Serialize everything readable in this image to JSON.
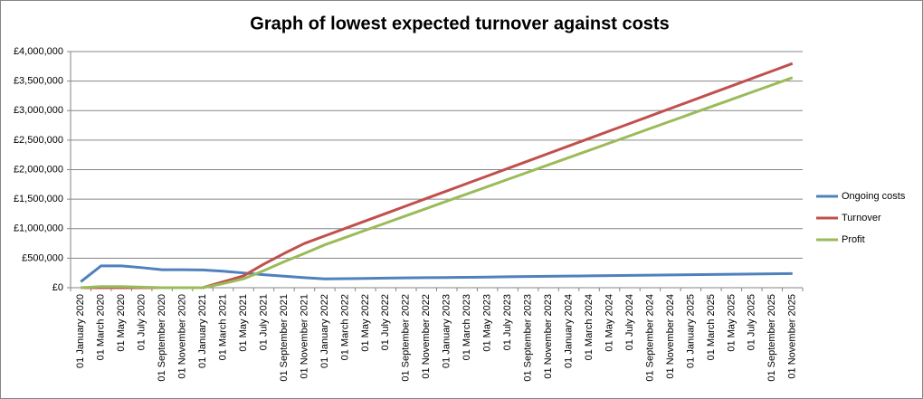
{
  "chart_data": {
    "type": "line",
    "title": "Graph of lowest expected turnover against costs",
    "categories": [
      "01 January 2020",
      "01 March 2020",
      "01 May 2020",
      "01 July 2020",
      "01 September 2020",
      "01 November 2020",
      "01 January 2021",
      "01 March 2021",
      "01 May 2021",
      "01 July 2021",
      "01 September 2021",
      "01 November 2021",
      "01 January 2022",
      "01 March 2022",
      "01 May 2022",
      "01 July 2022",
      "01 September 2022",
      "01 November 2022",
      "01 January 2023",
      "01 March 2023",
      "01 May 2023",
      "01 July 2023",
      "01 September 2023",
      "01 November 2023",
      "01 January 2024",
      "01 March 2024",
      "01 May 2024",
      "01 July 2024",
      "01 September 2024",
      "01 November 2024",
      "01 January 2025",
      "01 March 2025",
      "01 May 2025",
      "01 July 2025",
      "01 September 2025",
      "01 November 2025"
    ],
    "series": [
      {
        "name": "Ongoing costs",
        "color": "#4f81bd",
        "values": [
          100000,
          370000,
          370000,
          340000,
          305000,
          305000,
          300000,
          280000,
          250000,
          220000,
          195000,
          170000,
          150000,
          154000,
          158000,
          162000,
          166000,
          170000,
          173000,
          177000,
          181000,
          185000,
          189000,
          193000,
          197000,
          201000,
          205000,
          209000,
          212000,
          216000,
          220000,
          224000,
          228000,
          232000,
          236000,
          240000
        ]
      },
      {
        "name": "Turnover",
        "color": "#c0504d",
        "values": [
          0,
          0,
          0,
          0,
          0,
          0,
          0,
          100000,
          200000,
          400000,
          580000,
          750000,
          877000,
          1004000,
          1131000,
          1258000,
          1385000,
          1512000,
          1639000,
          1766000,
          1893000,
          2020000,
          2147000,
          2274000,
          2401000,
          2528000,
          2655000,
          2782000,
          2909000,
          3036000,
          3163000,
          3290000,
          3417000,
          3544000,
          3671000,
          3798000
        ]
      },
      {
        "name": "Profit",
        "color": "#9bbb59",
        "values": [
          0,
          20000,
          20000,
          10000,
          0,
          0,
          0,
          70000,
          150000,
          290000,
          440000,
          580000,
          727000,
          850000,
          973000,
          1096000,
          1219000,
          1342000,
          1466000,
          1589000,
          1712000,
          1835000,
          1958000,
          2081000,
          2204000,
          2327000,
          2450000,
          2573000,
          2697000,
          2820000,
          2943000,
          3066000,
          3189000,
          3312000,
          3435000,
          3558000
        ]
      }
    ],
    "ylim": [
      0,
      4000000
    ],
    "yticks": [
      {
        "value": 0,
        "label": "£0"
      },
      {
        "value": 500000,
        "label": "£500,000"
      },
      {
        "value": 1000000,
        "label": "£1,000,000"
      },
      {
        "value": 1500000,
        "label": "£1,500,000"
      },
      {
        "value": 2000000,
        "label": "£2,000,000"
      },
      {
        "value": 2500000,
        "label": "£2,500,000"
      },
      {
        "value": 3000000,
        "label": "£3,000,000"
      },
      {
        "value": 3500000,
        "label": "£3,500,000"
      },
      {
        "value": 4000000,
        "label": "£4,000,000"
      }
    ],
    "grid": true,
    "legend": "right"
  }
}
